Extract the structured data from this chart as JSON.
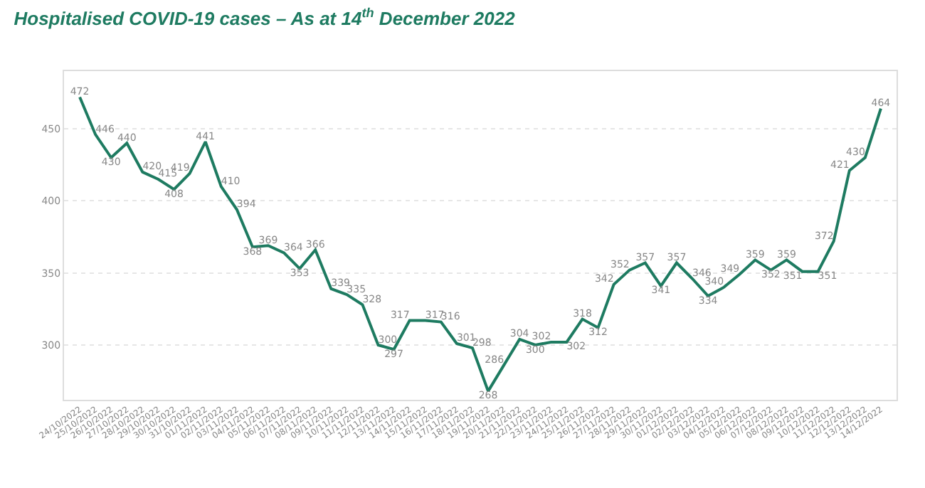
{
  "chart_data": {
    "type": "line",
    "title": "Hospitalised COVID-19 cases – As at 14$^{th}$ December 2022",
    "categories": [
      "24/10/2022",
      "25/10/2022",
      "26/10/2022",
      "27/10/2022",
      "28/10/2022",
      "29/10/2022",
      "30/10/2022",
      "31/10/2022",
      "01/11/2022",
      "02/11/2022",
      "03/11/2022",
      "04/11/2022",
      "05/11/2022",
      "06/11/2022",
      "07/11/2022",
      "08/11/2022",
      "09/11/2022",
      "10/11/2022",
      "11/11/2022",
      "12/11/2022",
      "13/11/2022",
      "14/11/2022",
      "15/11/2022",
      "16/11/2022",
      "17/11/2022",
      "18/11/2022",
      "19/11/2022",
      "20/11/2022",
      "21/11/2022",
      "22/11/2022",
      "23/11/2022",
      "24/11/2022",
      "25/11/2022",
      "26/11/2022",
      "27/11/2022",
      "28/11/2022",
      "29/11/2022",
      "30/11/2022",
      "01/12/2022",
      "02/12/2022",
      "03/12/2022",
      "04/12/2022",
      "05/12/2022",
      "06/12/2022",
      "07/12/2022",
      "08/12/2022",
      "09/12/2022",
      "10/12/2022",
      "11/12/2022",
      "12/12/2022",
      "13/12/2022",
      "14/12/2022"
    ],
    "series": [
      {
        "color": "#1e7b61",
        "values": [
          472,
          446,
          430,
          440,
          420,
          415,
          408,
          419,
          441,
          410,
          394,
          368,
          369,
          364,
          353,
          366,
          339,
          335,
          328,
          300,
          297,
          317,
          317,
          316,
          301,
          298,
          268,
          286,
          304,
          300,
          302,
          302,
          318,
          312,
          342,
          352,
          357,
          341,
          357,
          346,
          334,
          340,
          349,
          359,
          352,
          359,
          351,
          351,
          372,
          421,
          430,
          464
        ]
      }
    ],
    "ylim": [
      262,
      490
    ],
    "yticks": [
      300,
      350,
      400,
      450
    ],
    "grid": "y",
    "data_labels": true,
    "marker": "none",
    "line_style": "solid"
  }
}
